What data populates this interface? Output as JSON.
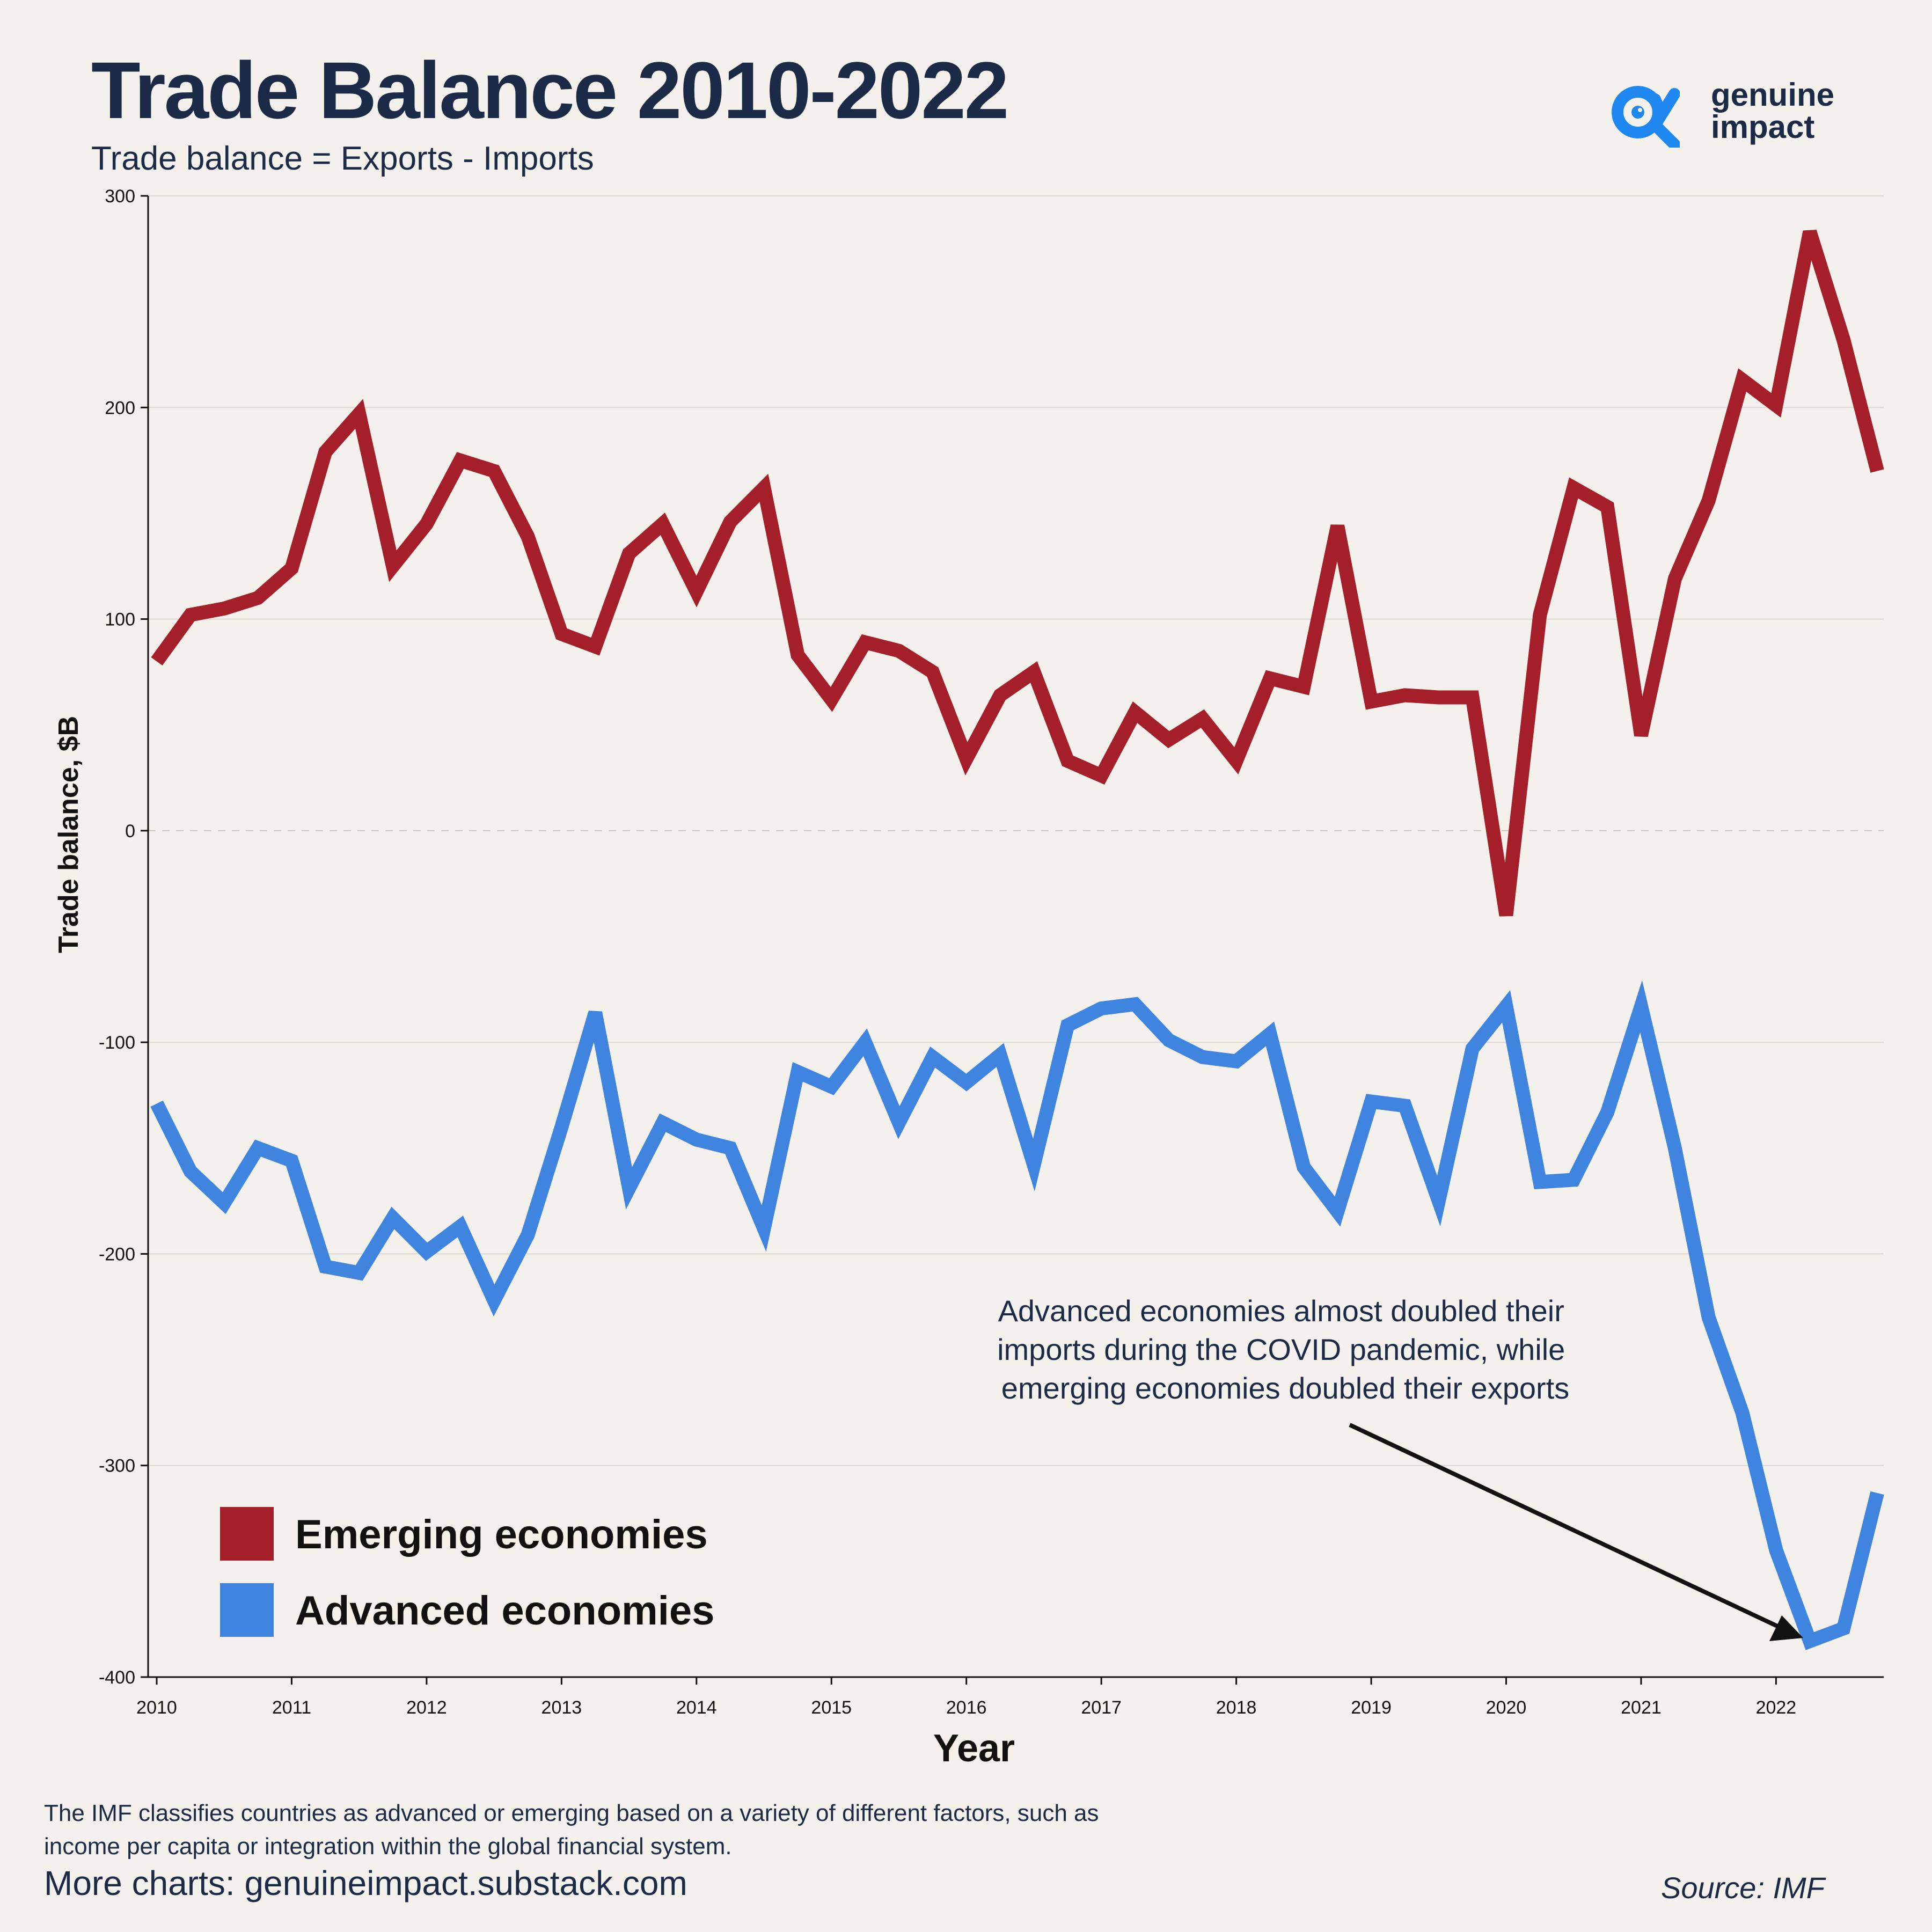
{
  "header": {
    "title": "Trade Balance 2010-2022",
    "subtitle": "Trade balance = Exports - Imports"
  },
  "logo": {
    "line1": "genuine",
    "line2": "impact",
    "icon": "alpha-eye-icon"
  },
  "colors": {
    "emerging": "#a51f2b",
    "advanced": "#3f85e0",
    "background": "#f4f1ec",
    "text": "#1b2a47"
  },
  "chart_data": {
    "type": "line",
    "xlabel": "Year",
    "ylabel": "Trade balance, $B",
    "ylim": [
      -400,
      300
    ],
    "yticks": [
      300,
      200,
      100,
      0,
      -100,
      -200,
      -300,
      -400
    ],
    "xlim": [
      2010,
      2022.75
    ],
    "xticks": [
      "2010",
      "2011",
      "2012",
      "2013",
      "2014",
      "2015",
      "2016",
      "2017",
      "2018",
      "2019",
      "2020",
      "2021",
      "2022"
    ],
    "x": [
      2010,
      2010.25,
      2010.5,
      2010.75,
      2011,
      2011.25,
      2011.5,
      2011.75,
      2012,
      2012.25,
      2012.5,
      2012.75,
      2013,
      2013.25,
      2013.5,
      2013.75,
      2014,
      2014.25,
      2014.5,
      2014.75,
      2015,
      2015.25,
      2015.5,
      2015.75,
      2016,
      2016.25,
      2016.5,
      2016.75,
      2017,
      2017.25,
      2017.5,
      2017.75,
      2018,
      2018.25,
      2018.5,
      2018.75,
      2019,
      2019.25,
      2019.5,
      2019.75,
      2020,
      2020.25,
      2020.5,
      2020.75,
      2021,
      2021.25,
      2021.5,
      2021.75,
      2022,
      2022.25,
      2022.5,
      2022.75
    ],
    "series": [
      {
        "name": "Emerging economies",
        "color": "#a51f2b",
        "values": [
          80,
          102,
          105,
          110,
          124,
          179,
          197,
          125,
          145,
          175,
          170,
          139,
          93,
          87,
          131,
          145,
          113,
          146,
          162,
          83,
          62,
          89,
          85,
          75,
          34,
          64,
          75,
          33,
          26,
          56,
          43,
          53,
          33,
          72,
          68,
          144,
          61,
          64,
          63,
          63,
          -40,
          102,
          162,
          153,
          45,
          119,
          156,
          213,
          201,
          283,
          232,
          170
        ]
      },
      {
        "name": "Advanced economies",
        "color": "#3f85e0",
        "values": [
          -129,
          -161,
          -176,
          -150,
          -156,
          -206,
          -209,
          -183,
          -199,
          -187,
          -222,
          -191,
          -140,
          -86,
          -169,
          -138,
          -146,
          -150,
          -188,
          -114,
          -121,
          -100,
          -138,
          -107,
          -119,
          -106,
          -158,
          -92,
          -84,
          -82,
          -99,
          -107,
          -109,
          -96,
          -159,
          -180,
          -128,
          -130,
          -175,
          -103,
          -83,
          -166,
          -165,
          -133,
          -83,
          -150,
          -230,
          -275,
          -340,
          -383,
          -377,
          -313
        ]
      }
    ],
    "annotation": "Advanced economies almost doubled their imports during the COVID pandemic, while emerging economies doubled their exports",
    "legend_position": "bottom-left"
  },
  "footer": {
    "note": "The IMF classifies countries as advanced or emerging based on a variety of different factors, such as income per capita or integration within the global financial system.",
    "more_charts": "More charts: genuineimpact.substack.com",
    "source": "Source: IMF"
  }
}
